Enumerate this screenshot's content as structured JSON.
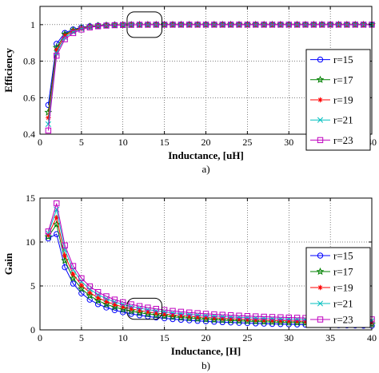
{
  "chart_data": [
    {
      "type": "line",
      "xlabel": "Inductance, [uH]",
      "ylabel": "Efficiency",
      "subcaption": "a)",
      "xlim": [
        0,
        40
      ],
      "ylim": [
        0.4,
        1.1
      ],
      "xticks": [
        0,
        5,
        10,
        15,
        20,
        25,
        30,
        35,
        40
      ],
      "yticks": [
        0.4,
        0.6,
        0.8,
        1.0
      ],
      "ytick_labels": [
        "0.4",
        "0.6",
        "0.8",
        "1"
      ],
      "grid": true,
      "legend_position": "right",
      "annotation": "rounded-rectangle highlight around x 10.5-14.5",
      "x": [
        1,
        2,
        3,
        4,
        5,
        6,
        7,
        8,
        9,
        10,
        11,
        12,
        13,
        14,
        15,
        16,
        17,
        18,
        19,
        20,
        21,
        22,
        23,
        24,
        25,
        26,
        27,
        28,
        29,
        30,
        31,
        32,
        33,
        34,
        35,
        36,
        37,
        38,
        39,
        40
      ],
      "series": [
        {
          "name": "r=15",
          "color": "#0000ff",
          "marker": "circle",
          "start": 0.56,
          "second": 0.895,
          "third": 0.955
        },
        {
          "name": "r=17",
          "color": "#008000",
          "marker": "star",
          "start": 0.52,
          "second": 0.875,
          "third": 0.948
        },
        {
          "name": "r=19",
          "color": "#ff0000",
          "marker": "asterisk",
          "start": 0.49,
          "second": 0.86,
          "third": 0.94
        },
        {
          "name": "r=21",
          "color": "#00bfbf",
          "marker": "x",
          "start": 0.455,
          "second": 0.845,
          "third": 0.93
        },
        {
          "name": "r=23",
          "color": "#bf00bf",
          "marker": "square",
          "start": 0.42,
          "second": 0.83,
          "third": 0.92
        }
      ]
    },
    {
      "type": "line",
      "xlabel": "Inductance, [H]",
      "ylabel": "Gain",
      "subcaption": "b)",
      "xlim": [
        0,
        40
      ],
      "ylim": [
        0,
        15
      ],
      "xticks": [
        0,
        5,
        10,
        15,
        20,
        25,
        30,
        35,
        40
      ],
      "yticks": [
        0,
        5,
        10,
        15
      ],
      "ytick_labels": [
        "0",
        "5",
        "10",
        "15"
      ],
      "grid": true,
      "legend_position": "right",
      "annotation": "rounded-rectangle highlight around x 10.5-14.5",
      "x": [
        1,
        2,
        3,
        4,
        5,
        6,
        7,
        8,
        9,
        10,
        11,
        12,
        13,
        14,
        15,
        16,
        17,
        18,
        19,
        20,
        21,
        22,
        23,
        24,
        25,
        26,
        27,
        28,
        29,
        30,
        31,
        32,
        33,
        34,
        35,
        36,
        37,
        38,
        39,
        40
      ],
      "series": [
        {
          "name": "r=15",
          "color": "#0000ff",
          "marker": "circle",
          "first": 10.4,
          "peak": 10.9,
          "floor": 0.0
        },
        {
          "name": "r=17",
          "color": "#008000",
          "marker": "star",
          "first": 10.6,
          "peak": 12.0,
          "floor": 0.15
        },
        {
          "name": "r=19",
          "color": "#ff0000",
          "marker": "asterisk",
          "first": 10.8,
          "peak": 12.8,
          "floor": 0.3
        },
        {
          "name": "r=21",
          "color": "#00bfbf",
          "marker": "x",
          "first": 11.0,
          "peak": 13.7,
          "floor": 0.45
        },
        {
          "name": "r=23",
          "color": "#bf00bf",
          "marker": "square",
          "first": 11.2,
          "peak": 14.4,
          "floor": 0.6
        }
      ]
    }
  ]
}
